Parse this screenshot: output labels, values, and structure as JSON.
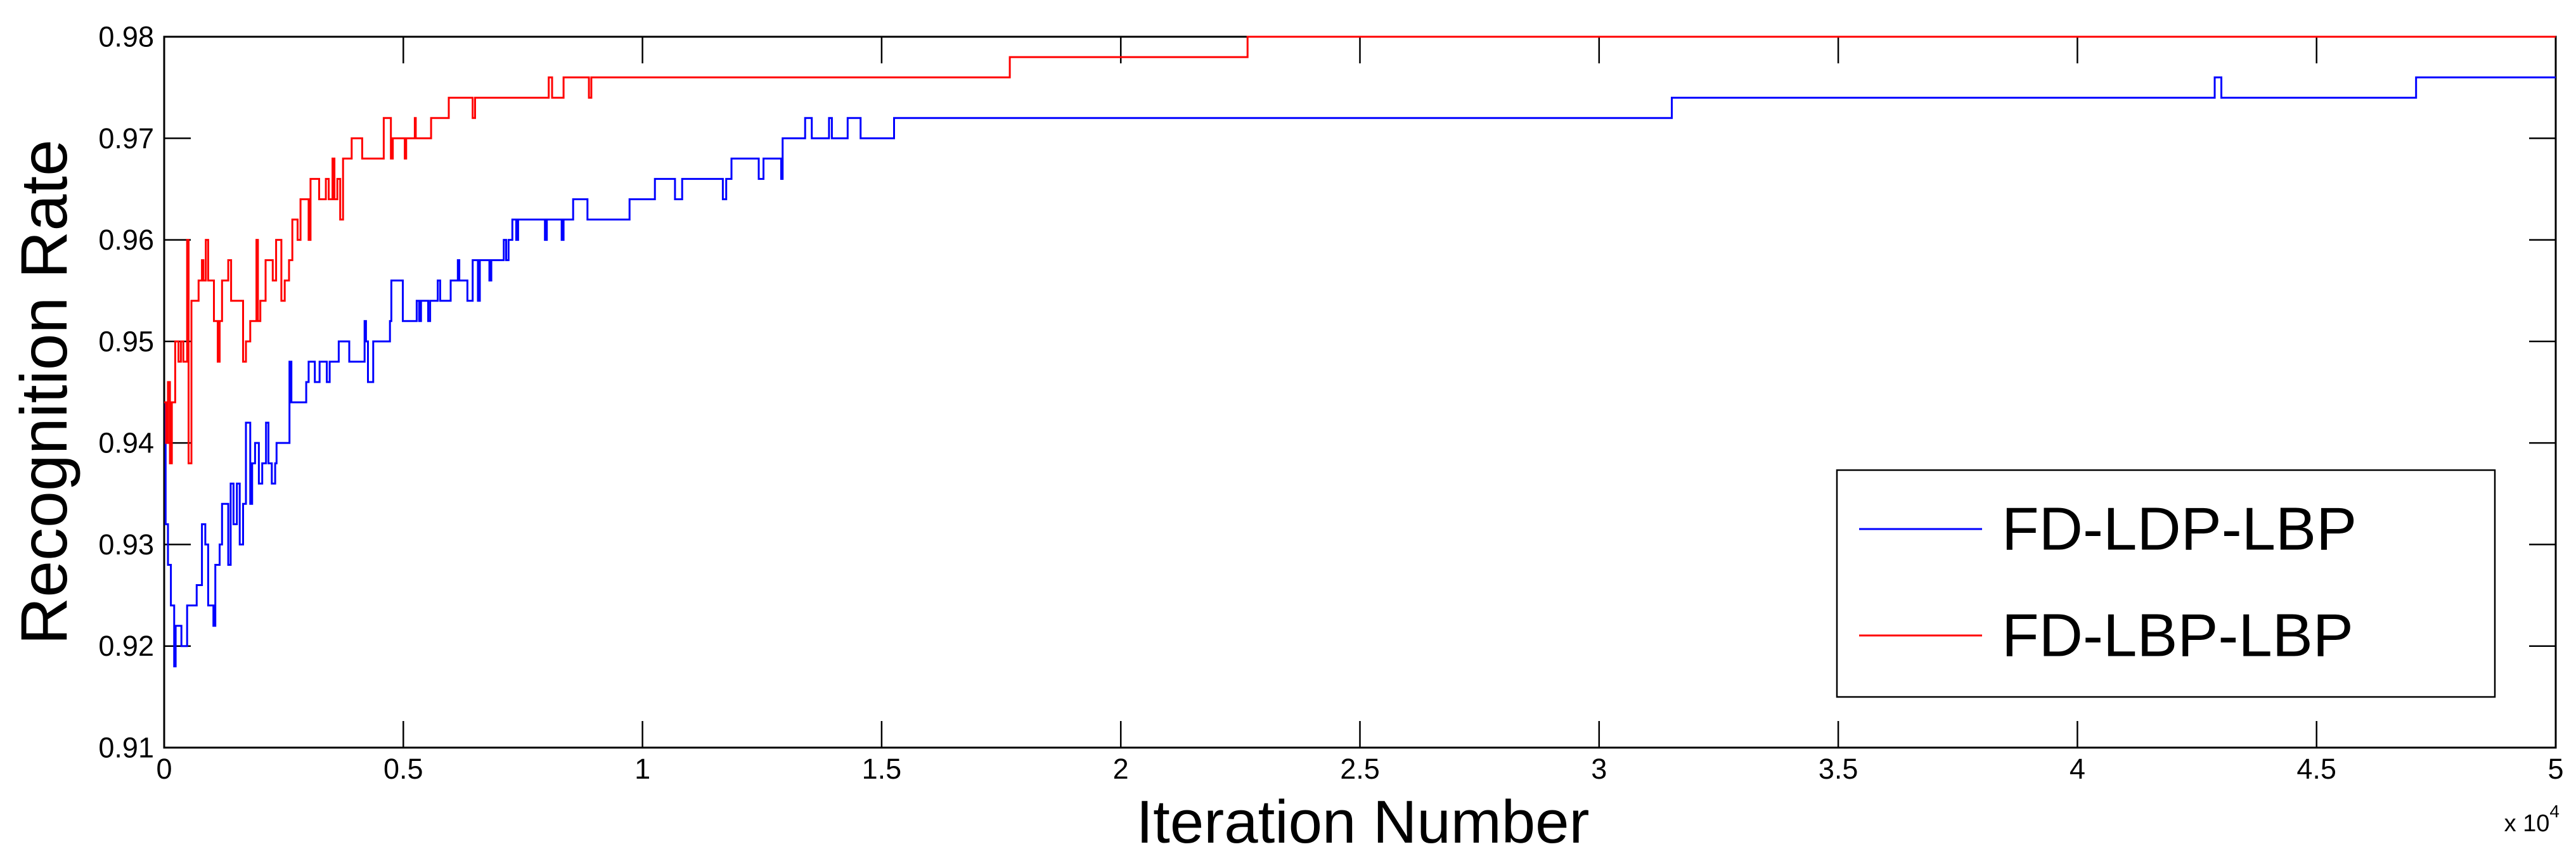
{
  "chart_data": {
    "type": "line",
    "title": "",
    "xlabel": "Iteration Number",
    "ylabel": "Recognition Rate",
    "x_unit_multiplier": {
      "base": "x 10",
      "exponent": "4"
    },
    "x_units_note": "x values below are in units of 10^4 iterations",
    "xlim": [
      0,
      5
    ],
    "ylim": [
      0.91,
      0.98
    ],
    "grid": false,
    "x_tick_values": [
      0,
      0.5,
      1,
      1.5,
      2,
      2.5,
      3,
      3.5,
      4,
      4.5,
      5
    ],
    "x_tick_labels": [
      "0",
      "0.5",
      "1",
      "1.5",
      "2",
      "2.5",
      "3",
      "3.5",
      "4",
      "4.5",
      "5"
    ],
    "y_tick_values": [
      0.91,
      0.92,
      0.93,
      0.94,
      0.95,
      0.96,
      0.97,
      0.98
    ],
    "y_tick_labels": [
      "0.91",
      "0.92",
      "0.93",
      "0.94",
      "0.95",
      "0.96",
      "0.97",
      "0.98"
    ],
    "legend": {
      "position": "lower-right-inside",
      "entries": [
        {
          "label": "FD-LDP-LBP",
          "color": "#0000ff"
        },
        {
          "label": "FD-LBP-LBP",
          "color": "#ff0000"
        }
      ]
    },
    "series": [
      {
        "name": "FD-LDP-LBP",
        "color": "#0000ff",
        "step": "post",
        "points": [
          [
            0.0,
            0.944
          ],
          [
            0.003,
            0.932
          ],
          [
            0.008,
            0.928
          ],
          [
            0.014,
            0.924
          ],
          [
            0.021,
            0.918
          ],
          [
            0.024,
            0.922
          ],
          [
            0.036,
            0.92
          ],
          [
            0.048,
            0.924
          ],
          [
            0.068,
            0.926
          ],
          [
            0.079,
            0.932
          ],
          [
            0.086,
            0.93
          ],
          [
            0.092,
            0.924
          ],
          [
            0.103,
            0.922
          ],
          [
            0.107,
            0.928
          ],
          [
            0.116,
            0.93
          ],
          [
            0.121,
            0.934
          ],
          [
            0.134,
            0.928
          ],
          [
            0.139,
            0.936
          ],
          [
            0.145,
            0.932
          ],
          [
            0.152,
            0.936
          ],
          [
            0.158,
            0.93
          ],
          [
            0.165,
            0.934
          ],
          [
            0.171,
            0.942
          ],
          [
            0.18,
            0.934
          ],
          [
            0.184,
            0.938
          ],
          [
            0.19,
            0.94
          ],
          [
            0.198,
            0.936
          ],
          [
            0.205,
            0.938
          ],
          [
            0.213,
            0.942
          ],
          [
            0.218,
            0.938
          ],
          [
            0.225,
            0.936
          ],
          [
            0.232,
            0.938
          ],
          [
            0.235,
            0.94
          ],
          [
            0.262,
            0.948
          ],
          [
            0.266,
            0.944
          ],
          [
            0.297,
            0.946
          ],
          [
            0.302,
            0.948
          ],
          [
            0.315,
            0.946
          ],
          [
            0.325,
            0.948
          ],
          [
            0.34,
            0.946
          ],
          [
            0.346,
            0.948
          ],
          [
            0.365,
            0.95
          ],
          [
            0.387,
            0.948
          ],
          [
            0.419,
            0.952
          ],
          [
            0.422,
            0.95
          ],
          [
            0.426,
            0.946
          ],
          [
            0.437,
            0.95
          ],
          [
            0.472,
            0.952
          ],
          [
            0.475,
            0.956
          ],
          [
            0.499,
            0.952
          ],
          [
            0.528,
            0.954
          ],
          [
            0.533,
            0.952
          ],
          [
            0.537,
            0.954
          ],
          [
            0.552,
            0.952
          ],
          [
            0.556,
            0.954
          ],
          [
            0.572,
            0.956
          ],
          [
            0.577,
            0.954
          ],
          [
            0.599,
            0.956
          ],
          [
            0.614,
            0.958
          ],
          [
            0.617,
            0.956
          ],
          [
            0.634,
            0.954
          ],
          [
            0.645,
            0.958
          ],
          [
            0.656,
            0.954
          ],
          [
            0.66,
            0.958
          ],
          [
            0.68,
            0.956
          ],
          [
            0.684,
            0.958
          ],
          [
            0.71,
            0.96
          ],
          [
            0.715,
            0.958
          ],
          [
            0.72,
            0.96
          ],
          [
            0.728,
            0.962
          ],
          [
            0.736,
            0.96
          ],
          [
            0.74,
            0.962
          ],
          [
            0.796,
            0.96
          ],
          [
            0.8,
            0.962
          ],
          [
            0.831,
            0.96
          ],
          [
            0.835,
            0.962
          ],
          [
            0.855,
            0.964
          ],
          [
            0.885,
            0.962
          ],
          [
            0.973,
            0.964
          ],
          [
            1.026,
            0.966
          ],
          [
            1.068,
            0.964
          ],
          [
            1.083,
            0.966
          ],
          [
            1.168,
            0.964
          ],
          [
            1.175,
            0.966
          ],
          [
            1.186,
            0.968
          ],
          [
            1.243,
            0.966
          ],
          [
            1.253,
            0.968
          ],
          [
            1.29,
            0.966
          ],
          [
            1.293,
            0.97
          ],
          [
            1.34,
            0.972
          ],
          [
            1.354,
            0.97
          ],
          [
            1.39,
            0.972
          ],
          [
            1.396,
            0.97
          ],
          [
            1.429,
            0.972
          ],
          [
            1.456,
            0.97
          ],
          [
            1.526,
            0.972
          ],
          [
            3.152,
            0.974
          ],
          [
            4.287,
            0.976
          ],
          [
            4.301,
            0.974
          ],
          [
            4.708,
            0.976
          ],
          [
            5.0,
            0.976
          ]
        ]
      },
      {
        "name": "FD-LBP-LBP",
        "color": "#ff0000",
        "step": "post",
        "points": [
          [
            0.0,
            0.944
          ],
          [
            0.004,
            0.94
          ],
          [
            0.008,
            0.946
          ],
          [
            0.012,
            0.938
          ],
          [
            0.016,
            0.944
          ],
          [
            0.023,
            0.95
          ],
          [
            0.03,
            0.948
          ],
          [
            0.035,
            0.95
          ],
          [
            0.04,
            0.948
          ],
          [
            0.048,
            0.96
          ],
          [
            0.051,
            0.938
          ],
          [
            0.057,
            0.954
          ],
          [
            0.072,
            0.956
          ],
          [
            0.079,
            0.958
          ],
          [
            0.082,
            0.956
          ],
          [
            0.087,
            0.96
          ],
          [
            0.092,
            0.956
          ],
          [
            0.104,
            0.952
          ],
          [
            0.112,
            0.948
          ],
          [
            0.116,
            0.952
          ],
          [
            0.121,
            0.956
          ],
          [
            0.134,
            0.958
          ],
          [
            0.14,
            0.954
          ],
          [
            0.165,
            0.948
          ],
          [
            0.171,
            0.95
          ],
          [
            0.18,
            0.952
          ],
          [
            0.193,
            0.96
          ],
          [
            0.196,
            0.952
          ],
          [
            0.201,
            0.954
          ],
          [
            0.212,
            0.958
          ],
          [
            0.227,
            0.956
          ],
          [
            0.234,
            0.96
          ],
          [
            0.245,
            0.954
          ],
          [
            0.252,
            0.956
          ],
          [
            0.261,
            0.958
          ],
          [
            0.268,
            0.962
          ],
          [
            0.279,
            0.96
          ],
          [
            0.285,
            0.964
          ],
          [
            0.302,
            0.96
          ],
          [
            0.306,
            0.966
          ],
          [
            0.324,
            0.964
          ],
          [
            0.338,
            0.966
          ],
          [
            0.344,
            0.964
          ],
          [
            0.352,
            0.968
          ],
          [
            0.356,
            0.964
          ],
          [
            0.362,
            0.966
          ],
          [
            0.368,
            0.962
          ],
          [
            0.374,
            0.968
          ],
          [
            0.392,
            0.97
          ],
          [
            0.414,
            0.968
          ],
          [
            0.459,
            0.972
          ],
          [
            0.474,
            0.968
          ],
          [
            0.478,
            0.97
          ],
          [
            0.503,
            0.968
          ],
          [
            0.506,
            0.97
          ],
          [
            0.524,
            0.972
          ],
          [
            0.526,
            0.97
          ],
          [
            0.558,
            0.972
          ],
          [
            0.595,
            0.974
          ],
          [
            0.645,
            0.972
          ],
          [
            0.65,
            0.974
          ],
          [
            0.804,
            0.976
          ],
          [
            0.811,
            0.974
          ],
          [
            0.835,
            0.976
          ],
          [
            0.888,
            0.974
          ],
          [
            0.893,
            0.976
          ],
          [
            1.768,
            0.978
          ],
          [
            2.265,
            0.98
          ],
          [
            5.0,
            0.98
          ]
        ]
      }
    ]
  },
  "colors": {
    "background": "#ffffff",
    "axis": "#000000",
    "text": "#000000"
  }
}
